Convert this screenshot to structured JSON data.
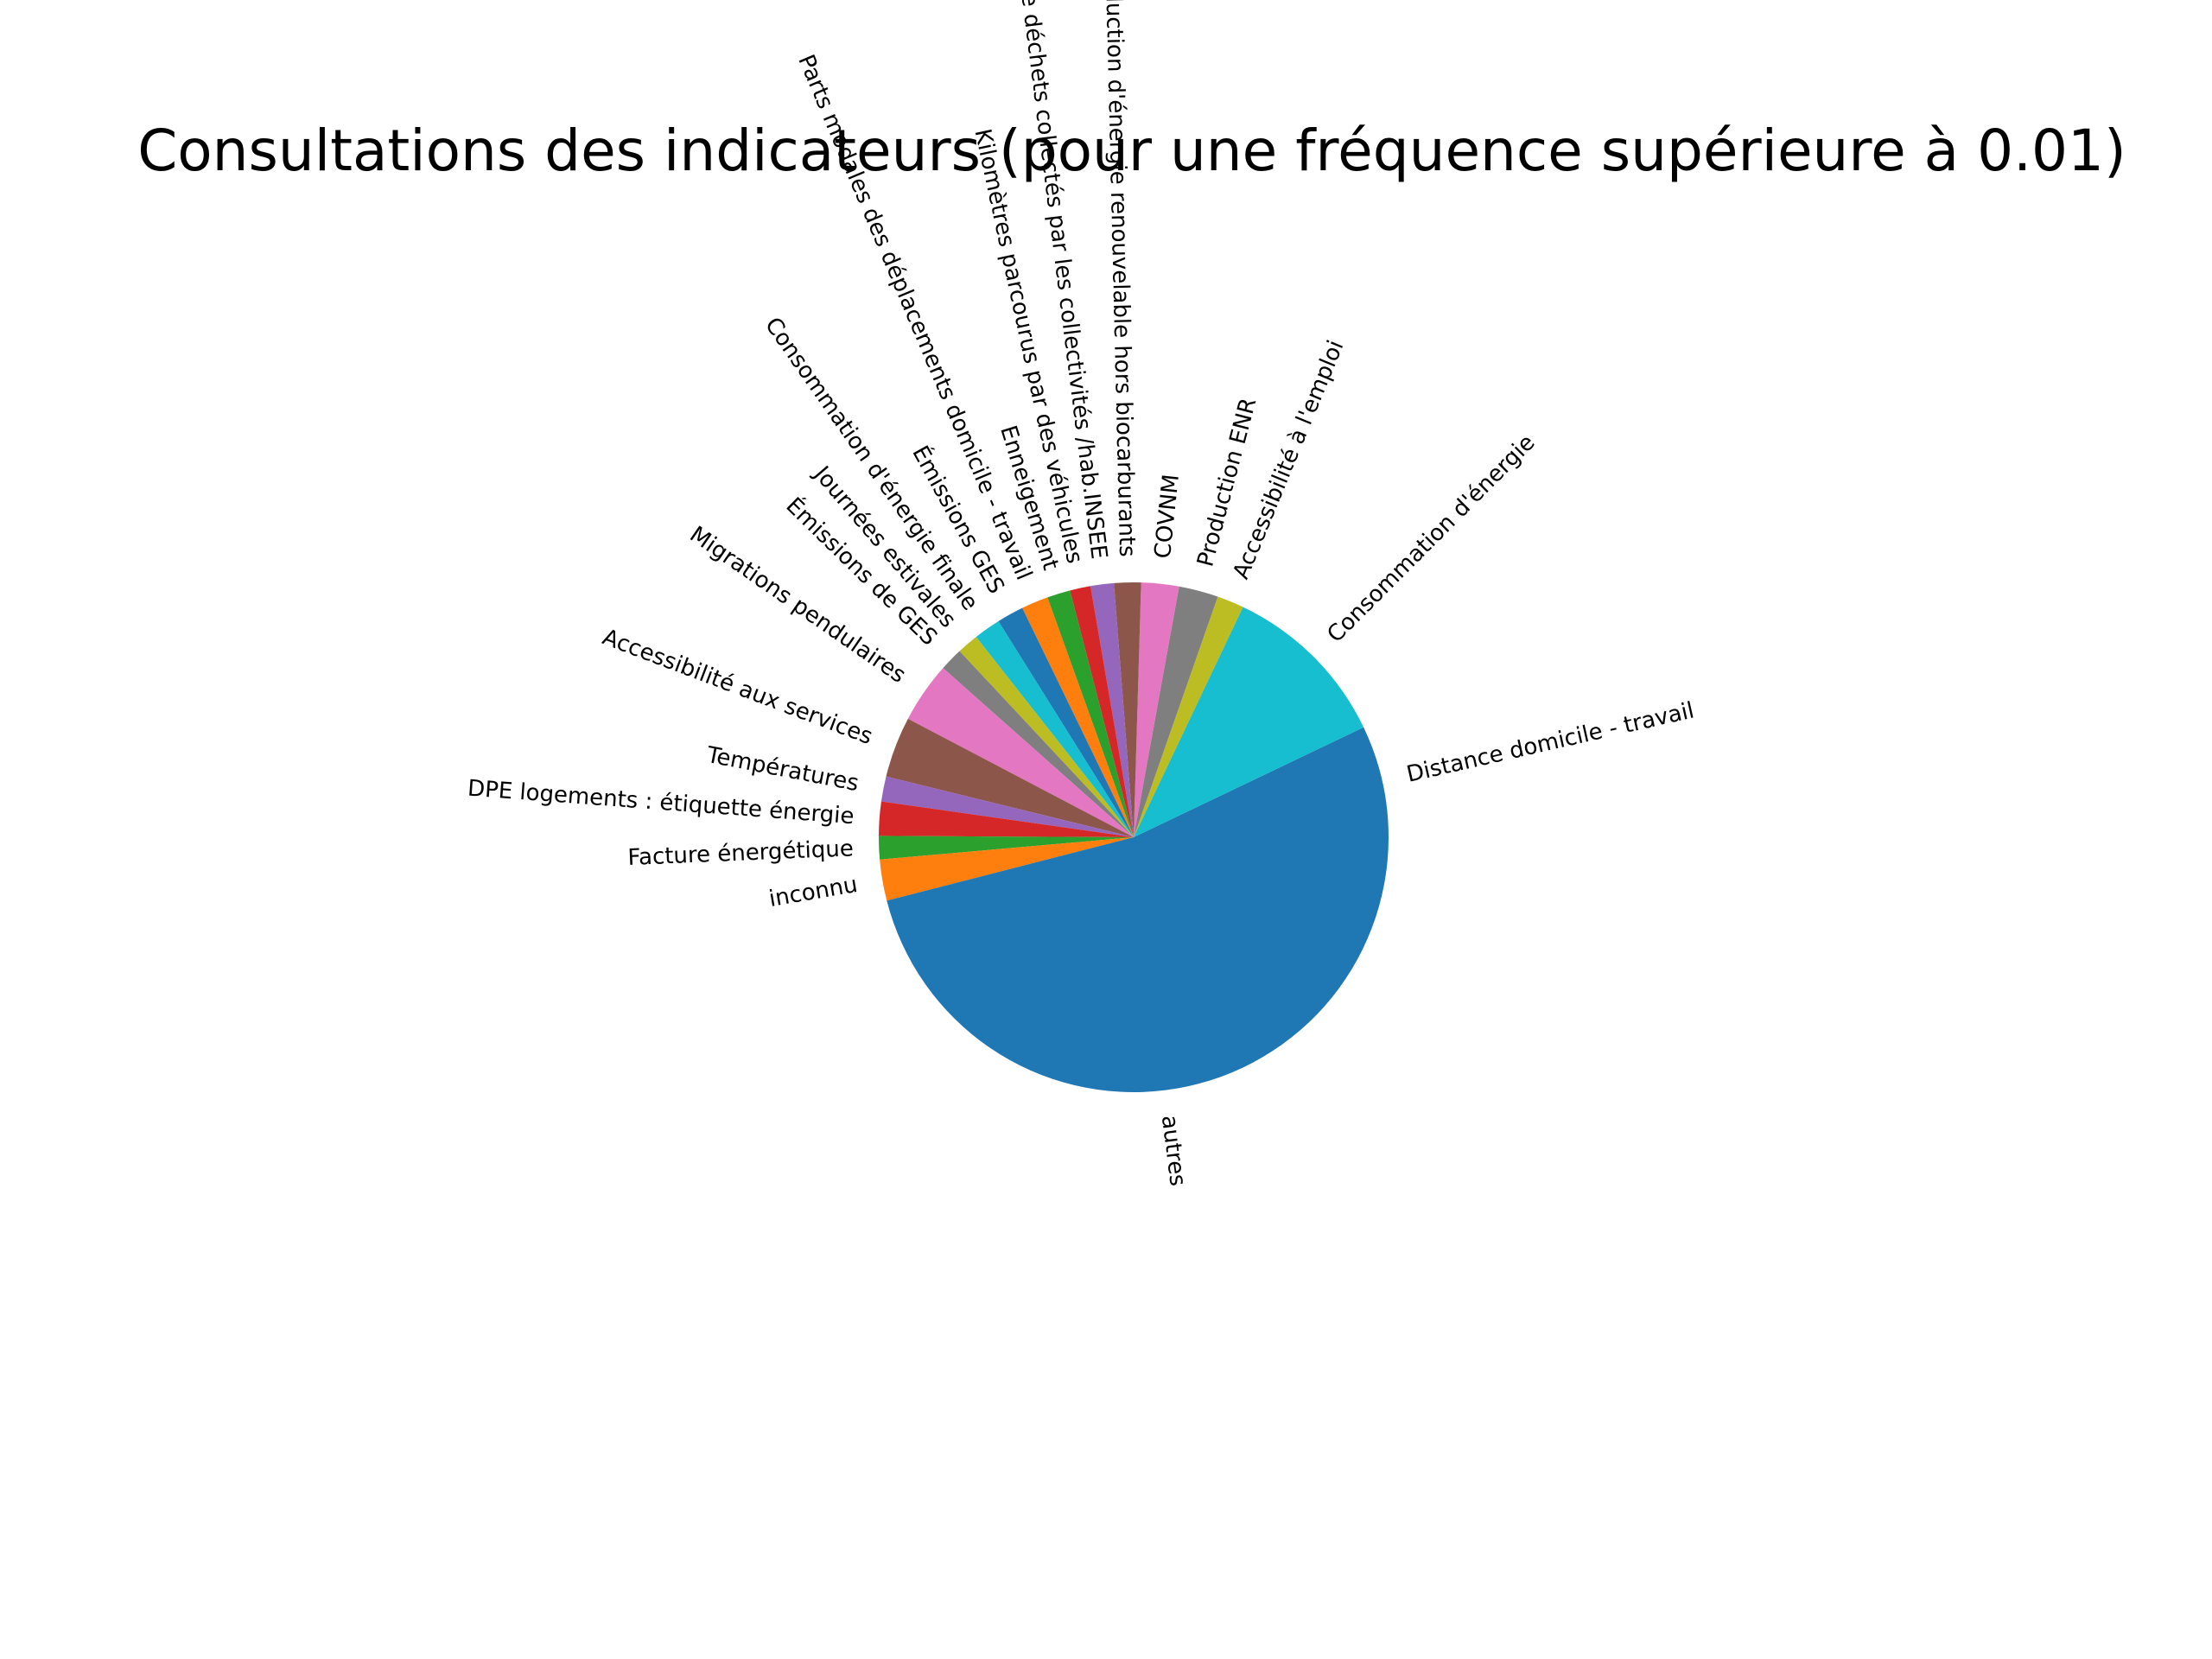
{
  "chart_data": {
    "type": "pie",
    "title": "Consultations des indicateurs (pour une fréquence supérieure à 0.01)",
    "start_angle_deg": 0,
    "direction": "counterclockwise",
    "slices": [
      {
        "label": "Distance domicile - travail",
        "value": 0.0625,
        "color": "#1f77b4"
      },
      {
        "label": "Consommation d'énergie",
        "value": 0.0955,
        "color": "#17becf"
      },
      {
        "label": "Accessibilité à l'emploi",
        "value": 0.015,
        "color": "#bcbd22"
      },
      {
        "label": "Production ENR",
        "value": 0.022,
        "color": "#7f7f7f"
      },
      {
        "label": "COVNM",
        "value": 0.021,
        "color": "#e377c2"
      },
      {
        "label": "Production d'énergie renouvelable hors biocarburants",
        "value": 0.015,
        "color": "#8c564b"
      },
      {
        "label": "Quantité de déchets collectés par les collectivités /hab.INSEE",
        "value": 0.013,
        "color": "#9467bd"
      },
      {
        "label": "Kilomètres parcourus par des véhicules",
        "value": 0.0115,
        "color": "#d62728"
      },
      {
        "label": "Enneigement",
        "value": 0.013,
        "color": "#2ca02c"
      },
      {
        "label": "Parts modales des déplacements domicile - travail",
        "value": 0.015,
        "color": "#ff7f0e"
      },
      {
        "label": "Émissions GES",
        "value": 0.015,
        "color": "#1f77b4"
      },
      {
        "label": "Consommation d'énergie finale",
        "value": 0.015,
        "color": "#17becf"
      },
      {
        "label": "Journées estivales",
        "value": 0.012,
        "color": "#bcbd22"
      },
      {
        "label": "Émissions de GES",
        "value": 0.013,
        "color": "#7f7f7f"
      },
      {
        "label": "Migrations pendulaires",
        "value": 0.034,
        "color": "#e377c2"
      },
      {
        "label": "Accessibilité aux services",
        "value": 0.034,
        "color": "#8c564b"
      },
      {
        "label": "Températures",
        "value": 0.014,
        "color": "#9467bd"
      },
      {
        "label": "DPE logements : étiquette énergie",
        "value": 0.019,
        "color": "#d62728"
      },
      {
        "label": "Facture énergétique",
        "value": 0.013,
        "color": "#2ca02c"
      },
      {
        "label": "inconnu",
        "value": 0.023,
        "color": "#ff7f0e"
      },
      {
        "label": "autres",
        "value": 0.405,
        "color": "#1f77b4"
      }
    ]
  }
}
